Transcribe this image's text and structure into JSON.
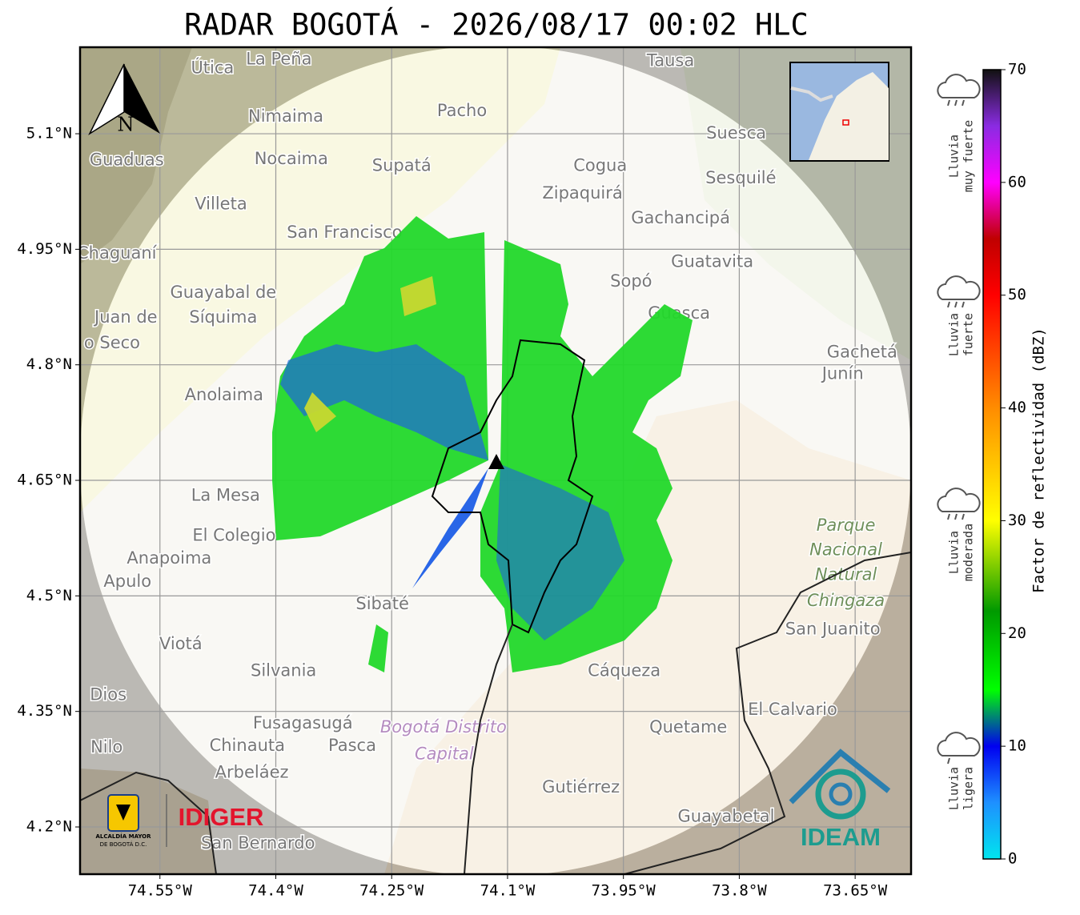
{
  "title": "RADAR BOGOTÁ - 2026/08/17 00:02 HLC",
  "north_label": "N",
  "map": {
    "lon_range": [
      -74.6534,
      -73.5776
    ],
    "lat_range": [
      4.1387,
      5.2123
    ],
    "grid": true,
    "lon_ticks": [
      {
        "value": -74.55,
        "label": "74.55°W"
      },
      {
        "value": -74.4,
        "label": "74.4°W"
      },
      {
        "value": -74.25,
        "label": "74.25°W"
      },
      {
        "value": -74.1,
        "label": "74.1°W"
      },
      {
        "value": -73.95,
        "label": "73.95°W"
      },
      {
        "value": -73.8,
        "label": "73.8°W"
      },
      {
        "value": -73.65,
        "label": "73.65°W"
      }
    ],
    "lat_ticks": [
      {
        "value": 5.1,
        "label": "5.1°N"
      },
      {
        "value": 4.95,
        "label": "4.95°N"
      },
      {
        "value": 4.8,
        "label": "4.8°N"
      },
      {
        "value": 4.65,
        "label": "4.65°N"
      },
      {
        "value": 4.5,
        "label": "4.5°N"
      },
      {
        "value": 4.35,
        "label": "4.35°N"
      },
      {
        "value": 4.2,
        "label": "4.2°N"
      }
    ],
    "places": [
      {
        "name": "Útica",
        "lon": -74.482,
        "lat": 5.185
      },
      {
        "name": "La Peña",
        "lon": -74.396,
        "lat": 5.196
      },
      {
        "name": "Tausa",
        "lon": -73.889,
        "lat": 5.194
      },
      {
        "name": "Nimaima",
        "lon": -74.387,
        "lat": 5.122
      },
      {
        "name": "Pacho",
        "lon": -74.159,
        "lat": 5.129
      },
      {
        "name": "Suesca",
        "lon": -73.804,
        "lat": 5.1
      },
      {
        "name": "Guaduas",
        "lon": -74.593,
        "lat": 5.065
      },
      {
        "name": "Nocaima",
        "lon": -74.38,
        "lat": 5.067
      },
      {
        "name": "Supatá",
        "lon": -74.237,
        "lat": 5.058
      },
      {
        "name": "Cogua",
        "lon": -73.98,
        "lat": 5.058
      },
      {
        "name": "Sesquilé",
        "lon": -73.798,
        "lat": 5.042
      },
      {
        "name": "Zipaquirá",
        "lon": -74.003,
        "lat": 5.022
      },
      {
        "name": "Villeta",
        "lon": -74.471,
        "lat": 5.008
      },
      {
        "name": "Gachancipá",
        "lon": -73.876,
        "lat": 4.99
      },
      {
        "name": "San Francisco",
        "lon": -74.311,
        "lat": 4.971
      },
      {
        "name": "Chaguaní",
        "lon": -74.606,
        "lat": 4.944
      },
      {
        "name": "Guatavita",
        "lon": -73.835,
        "lat": 4.933
      },
      {
        "name": "Sopó",
        "lon": -73.94,
        "lat": 4.908
      },
      {
        "name": "Guayabal de",
        "lon": -74.468,
        "lat": 4.893
      },
      {
        "name": "Síquima",
        "lon": -74.468,
        "lat": 4.861
      },
      {
        "name": "Juan de",
        "lon": -74.594,
        "lat": 4.861
      },
      {
        "name": "o Seco",
        "lon": -74.612,
        "lat": 4.828
      },
      {
        "name": "Guasca",
        "lon": -73.878,
        "lat": 4.866
      },
      {
        "name": "Gachetá",
        "lon": -73.641,
        "lat": 4.816
      },
      {
        "name": "Junín",
        "lon": -73.666,
        "lat": 4.788
      },
      {
        "name": "Anolaima",
        "lon": -74.467,
        "lat": 4.76
      },
      {
        "name": "La Mesa",
        "lon": -74.465,
        "lat": 4.63
      },
      {
        "name": "El Colegio",
        "lon": -74.454,
        "lat": 4.578
      },
      {
        "name": "Anapoima",
        "lon": -74.538,
        "lat": 4.548
      },
      {
        "name": "Apulo",
        "lon": -74.592,
        "lat": 4.518
      },
      {
        "name": "Parque",
        "lon": -73.662,
        "lat": 4.591,
        "style": "park"
      },
      {
        "name": "Nacional",
        "lon": -73.662,
        "lat": 4.559,
        "style": "park"
      },
      {
        "name": "Natural",
        "lon": -73.662,
        "lat": 4.527,
        "style": "park"
      },
      {
        "name": "Chingaza",
        "lon": -73.662,
        "lat": 4.493,
        "style": "park"
      },
      {
        "name": "San Juanito",
        "lon": -73.679,
        "lat": 4.456
      },
      {
        "name": "Sibaté",
        "lon": -74.262,
        "lat": 4.489
      },
      {
        "name": "Viotá",
        "lon": -74.523,
        "lat": 4.437
      },
      {
        "name": "Silvania",
        "lon": -74.39,
        "lat": 4.402
      },
      {
        "name": "Cáqueza",
        "lon": -73.949,
        "lat": 4.402
      },
      {
        "name": "Dios",
        "lon": -74.617,
        "lat": 4.371
      },
      {
        "name": "El Calvario",
        "lon": -73.731,
        "lat": 4.352
      },
      {
        "name": "Fusagasugá",
        "lon": -74.365,
        "lat": 4.334
      },
      {
        "name": "Quetame",
        "lon": -73.866,
        "lat": 4.329
      },
      {
        "name": "Bogotá Distrito",
        "lon": -74.183,
        "lat": 4.329,
        "style": "district"
      },
      {
        "name": "Capital",
        "lon": -74.182,
        "lat": 4.294,
        "style": "district"
      },
      {
        "name": "Nilo",
        "lon": -74.619,
        "lat": 4.303
      },
      {
        "name": "Chinauta",
        "lon": -74.437,
        "lat": 4.305
      },
      {
        "name": "Pasca",
        "lon": -74.301,
        "lat": 4.305
      },
      {
        "name": "Arbeláez",
        "lon": -74.431,
        "lat": 4.27
      },
      {
        "name": "Gutiérrez",
        "lon": -74.005,
        "lat": 4.251
      },
      {
        "name": "Guayabetal",
        "lon": -73.817,
        "lat": 4.213
      },
      {
        "name": "San Bernardo",
        "lon": -74.423,
        "lat": 4.178
      }
    ]
  },
  "colorbar": {
    "label": "Factor de reflectividad (dBZ)",
    "range": [
      0,
      70
    ],
    "ticks": [
      0,
      10,
      20,
      30,
      40,
      50,
      60,
      70
    ],
    "colorscale": [
      {
        "value": 0,
        "color": "#00e5ee"
      },
      {
        "value": 5,
        "color": "#1e90ff"
      },
      {
        "value": 10,
        "color": "#0000f0"
      },
      {
        "value": 15,
        "color": "#00ff00"
      },
      {
        "value": 22,
        "color": "#009900"
      },
      {
        "value": 30,
        "color": "#ffff00"
      },
      {
        "value": 40,
        "color": "#ff8c00"
      },
      {
        "value": 50,
        "color": "#ff0000"
      },
      {
        "value": 55,
        "color": "#c00000"
      },
      {
        "value": 60,
        "color": "#ff00ff"
      },
      {
        "value": 65,
        "color": "#8a2be2"
      },
      {
        "value": 70,
        "color": "#111111"
      }
    ]
  },
  "legend": [
    {
      "lines": [
        "Lluvia",
        "muy fuerte"
      ]
    },
    {
      "lines": [
        "Lluvia",
        "fuerte"
      ]
    },
    {
      "lines": [
        "Lluvia",
        "moderada"
      ]
    },
    {
      "lines": [
        "Lluvia",
        "ligera"
      ]
    }
  ],
  "logos": {
    "alcaldia": [
      "ALCALDÍA MAYOR",
      "DE BOGOTÁ D.C."
    ],
    "idiger": "IDIGER",
    "ideam": "IDEAM"
  }
}
